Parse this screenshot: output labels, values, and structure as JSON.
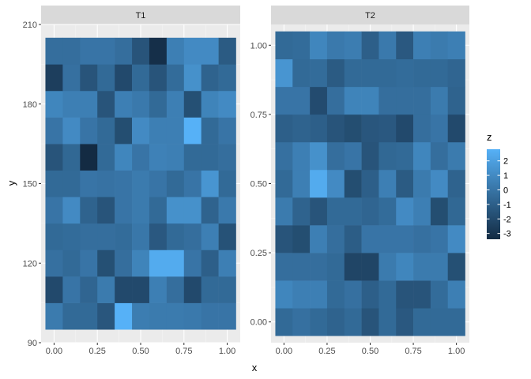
{
  "chart_data": {
    "type": "heatmap",
    "xlabel": "x",
    "ylabel": "y",
    "legend": {
      "title": "z",
      "placement": "right",
      "breaks": [
        2,
        1,
        0,
        -1,
        -2,
        -3
      ],
      "range": [
        -3.4,
        2.8
      ]
    },
    "color_scale": {
      "low": "#132B43",
      "high": "#56B1F7"
    },
    "grid": true,
    "facets": [
      {
        "label": "T1",
        "x_ticks": [
          "0.00",
          "0.25",
          "0.50",
          "0.75",
          "1.00"
        ],
        "x_tick_values": [
          0,
          0.25,
          0.5,
          0.75,
          1
        ],
        "y_ticks": [
          "90",
          "120",
          "150",
          "180",
          "210"
        ],
        "y_tick_values": [
          90,
          120,
          150,
          180,
          210
        ],
        "xlim": [
          -0.075,
          1.075
        ],
        "ylim": [
          90,
          210
        ],
        "x_centers": [
          0,
          0.1,
          0.2,
          0.3,
          0.4,
          0.5,
          0.6,
          0.7,
          0.8,
          0.9,
          1
        ],
        "y_centers": [
          100,
          110,
          120,
          130,
          140,
          150,
          160,
          170,
          180,
          190,
          200
        ],
        "tile_width": 0.1,
        "tile_height": 10,
        "z": [
          [
            0.3,
            -0.5,
            -0.5,
            -1.4,
            2.8,
            0.4,
            0.3,
            0.3,
            0.2,
            0.0,
            0.0
          ],
          [
            -2.0,
            0.0,
            -0.7,
            0.3,
            -2.0,
            -2.0,
            0.5,
            -0.3,
            -2.0,
            -0.5,
            -0.5
          ],
          [
            -0.2,
            -0.5,
            0.0,
            -1.7,
            -0.3,
            0.7,
            2.5,
            2.5,
            0.0,
            -1.0,
            0.5
          ],
          [
            -0.5,
            -0.4,
            -0.3,
            -0.3,
            -0.4,
            0.1,
            -1.3,
            -0.5,
            -0.3,
            0.5,
            -1.6
          ],
          [
            0.0,
            1.0,
            -0.8,
            -1.5,
            0.0,
            0.3,
            -0.5,
            1.3,
            1.3,
            -0.8,
            0.2
          ],
          [
            -0.5,
            -0.5,
            0.0,
            -0.1,
            0.0,
            0.3,
            0.0,
            -0.5,
            0.0,
            1.5,
            -0.5
          ],
          [
            -1.5,
            -0.6,
            -3.4,
            -0.5,
            0.8,
            0.0,
            0.6,
            0.5,
            -0.5,
            -0.5,
            -0.3
          ],
          [
            0.0,
            1.0,
            0.0,
            -0.5,
            -1.8,
            1.0,
            0.5,
            0.5,
            2.8,
            -0.5,
            0.0
          ],
          [
            0.8,
            0.5,
            0.5,
            -1.5,
            0.5,
            0.2,
            -0.5,
            0.5,
            -1.7,
            0.7,
            1.0
          ],
          [
            -2.5,
            -0.2,
            -1.5,
            -0.5,
            -2.0,
            -0.5,
            -1.5,
            -0.4,
            1.3,
            -0.8,
            -0.5
          ],
          [
            -0.3,
            -0.3,
            0.0,
            0.0,
            -0.3,
            -1.5,
            -3.2,
            0.5,
            1.0,
            1.0,
            -1.2
          ]
        ]
      },
      {
        "label": "T2",
        "x_ticks": [
          "0.00",
          "0.25",
          "0.50",
          "0.75",
          "1.00"
        ],
        "x_tick_values": [
          0,
          0.25,
          0.5,
          0.75,
          1
        ],
        "y_ticks": [
          "0.00",
          "0.25",
          "0.50",
          "0.75",
          "1.00"
        ],
        "y_tick_values": [
          0,
          0.25,
          0.5,
          0.75,
          1
        ],
        "xlim": [
          -0.075,
          1.075
        ],
        "ylim": [
          -0.075,
          1.075
        ],
        "x_centers": [
          0,
          0.1,
          0.2,
          0.3,
          0.4,
          0.5,
          0.6,
          0.7,
          0.8,
          0.9,
          1
        ],
        "y_centers": [
          0,
          0.1,
          0.2,
          0.3,
          0.4,
          0.5,
          0.6,
          0.7,
          0.8,
          0.9,
          1
        ],
        "tile_width": 0.1,
        "tile_height": 0.1,
        "z": [
          [
            -0.5,
            -0.2,
            -0.5,
            -0.8,
            -0.5,
            -1.5,
            -0.5,
            -1.3,
            -0.5,
            -0.5,
            -0.5
          ],
          [
            0.8,
            0.5,
            0.5,
            -0.5,
            -0.2,
            -1.0,
            -0.5,
            -1.5,
            -1.5,
            -0.4,
            0.5
          ],
          [
            -0.3,
            -0.3,
            -0.3,
            -0.5,
            -2.2,
            -2.2,
            0.3,
            0.8,
            0.3,
            0.3,
            -1.7
          ],
          [
            -1.5,
            -1.8,
            0.5,
            -0.3,
            -1.1,
            0.0,
            0.0,
            0.0,
            -0.2,
            0.0,
            1.0
          ],
          [
            0.3,
            -0.8,
            -1.5,
            -0.5,
            -0.5,
            -0.7,
            -0.4,
            1.0,
            0.5,
            -1.8,
            -0.6
          ],
          [
            -0.5,
            0.5,
            2.5,
            1.0,
            -1.8,
            -1.0,
            0.5,
            -1.2,
            0.3,
            1.0,
            -0.8
          ],
          [
            -0.2,
            0.5,
            1.3,
            -0.3,
            0.0,
            -1.5,
            -0.6,
            -0.5,
            0.8,
            -0.3,
            0.3
          ],
          [
            -1.0,
            -0.8,
            -1.0,
            -1.5,
            -1.8,
            -1.4,
            -1.3,
            -2.0,
            -0.3,
            0.0,
            -2.0
          ],
          [
            0.0,
            0.0,
            -1.9,
            -0.3,
            0.7,
            0.7,
            -0.3,
            -0.3,
            -0.3,
            0.3,
            -0.8
          ],
          [
            1.5,
            -0.5,
            -0.4,
            -1.2,
            -0.5,
            -0.5,
            -0.5,
            -0.4,
            -0.5,
            -0.5,
            -0.7
          ],
          [
            -0.5,
            -0.4,
            0.8,
            0.2,
            0.4,
            -1.0,
            0.2,
            -1.3,
            0.5,
            0.3,
            0.5
          ]
        ]
      }
    ]
  }
}
